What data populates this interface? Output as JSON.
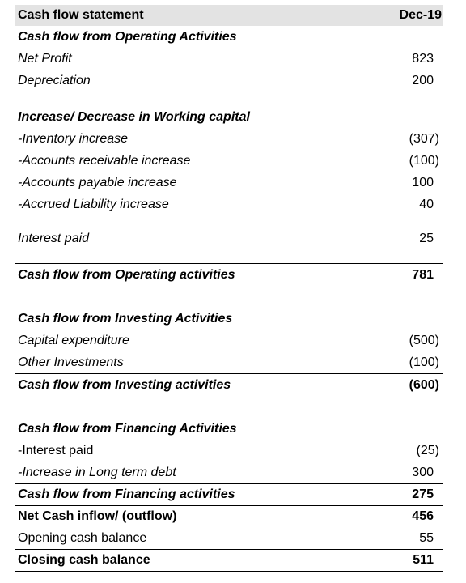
{
  "header": {
    "title": "Cash flow statement",
    "period": "Dec-19"
  },
  "rows": [
    {
      "label": "Cash flow from Operating Activities"
    },
    {
      "label": "Net Profit",
      "value": "823"
    },
    {
      "label": "Depreciation",
      "value": "200"
    },
    {
      "label": "Increase/ Decrease in Working capital"
    },
    {
      "label": "-Inventory increase",
      "value": "(307)"
    },
    {
      "label": "-Accounts receivable increase",
      "value": "(100)"
    },
    {
      "label": "-Accounts payable increase",
      "value": "100"
    },
    {
      "label": "-Accrued Liability increase",
      "value": "40"
    },
    {
      "label": "Interest paid",
      "value": "25"
    },
    {
      "label": "Cash flow from Operating activities",
      "value": "781"
    },
    {
      "label": "Cash flow from Investing Activities"
    },
    {
      "label": "Capital expenditure",
      "value": "(500)"
    },
    {
      "label": "Other Investments",
      "value": "(100)"
    },
    {
      "label": "Cash flow from Investing activities",
      "value": "(600)"
    },
    {
      "label": "Cash flow from Financing Activities"
    },
    {
      "label": "-Interest paid",
      "value": "(25)"
    },
    {
      "label": "-Increase in Long term debt",
      "value": "300"
    },
    {
      "label": "Cash flow from Financing activities",
      "value": "275"
    },
    {
      "label": "Net Cash inflow/ (outflow)",
      "value": "456"
    },
    {
      "label": "Opening cash balance",
      "value": "55"
    },
    {
      "label": "Closing cash balance",
      "value": "511"
    }
  ]
}
